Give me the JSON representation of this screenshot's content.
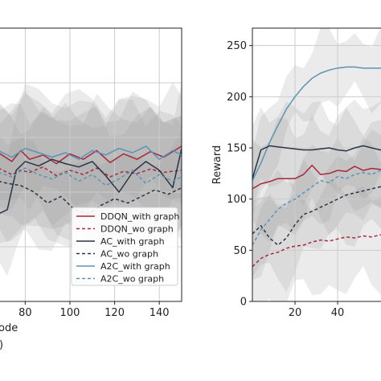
{
  "chart_data": [
    {
      "type": "line",
      "xlabel": "ode",
      "panel_label": ")",
      "xlim": [
        68,
        150
      ],
      "ylim": [
        20,
        270
      ],
      "x_ticks": [
        80,
        100,
        120,
        140
      ],
      "grid": true,
      "legend_position": "lower-right",
      "series": [
        {
          "name": "DDQN_with graph",
          "color": "#a8283c",
          "dash": "solid",
          "x": [
            68,
            74,
            78,
            82,
            88,
            94,
            100,
            106,
            112,
            118,
            124,
            130,
            136,
            142,
            150
          ],
          "y": [
            156,
            148,
            158,
            150,
            154,
            146,
            155,
            150,
            158,
            147,
            155,
            150,
            157,
            152,
            162
          ]
        },
        {
          "name": "DDQN_wo graph",
          "color": "#a8283c",
          "dash": "dashed",
          "x": [
            68,
            74,
            78,
            82,
            88,
            94,
            100,
            106,
            112,
            118,
            124,
            130,
            136,
            142,
            150
          ],
          "y": [
            142,
            136,
            140,
            138,
            143,
            135,
            140,
            136,
            142,
            134,
            139,
            137,
            141,
            138,
            140
          ]
        },
        {
          "name": "AC_with graph",
          "color": "#2b3444",
          "dash": "solid",
          "x": [
            68,
            72,
            76,
            80,
            86,
            92,
            98,
            104,
            110,
            116,
            122,
            128,
            134,
            140,
            146,
            150
          ],
          "y": [
            100,
            104,
            140,
            148,
            144,
            150,
            146,
            143,
            148,
            135,
            120,
            138,
            148,
            140,
            124,
            160
          ]
        },
        {
          "name": "AC_wo graph",
          "color": "#2b3444",
          "dash": "dashed",
          "x": [
            68,
            72,
            78,
            84,
            90,
            96,
            102,
            108,
            114,
            120,
            126,
            132,
            138,
            144,
            150
          ],
          "y": [
            130,
            128,
            126,
            120,
            110,
            116,
            104,
            100,
            108,
            114,
            110,
            116,
            122,
            118,
            124
          ]
        },
        {
          "name": "A2C_with graph",
          "color": "#5b93b6",
          "dash": "solid",
          "x": [
            68,
            74,
            80,
            86,
            92,
            98,
            104,
            110,
            116,
            122,
            128,
            134,
            140,
            146,
            150
          ],
          "y": [
            158,
            152,
            160,
            156,
            152,
            156,
            150,
            158,
            154,
            160,
            156,
            162,
            150,
            158,
            154
          ]
        },
        {
          "name": "A2C_wo graph",
          "color": "#5b93b6",
          "dash": "dashed",
          "x": [
            68,
            74,
            80,
            86,
            92,
            98,
            104,
            110,
            116,
            122,
            128,
            134,
            140,
            146,
            150
          ],
          "y": [
            138,
            134,
            142,
            136,
            132,
            138,
            130,
            136,
            126,
            132,
            140,
            128,
            136,
            130,
            134
          ]
        }
      ]
    },
    {
      "type": "line",
      "ylabel": "Reward",
      "xlim": [
        0,
        66
      ],
      "ylim": [
        0,
        267
      ],
      "x_ticks": [
        20,
        40
      ],
      "y_ticks": [
        0,
        50,
        100,
        150,
        200,
        250
      ],
      "grid": true,
      "series": [
        {
          "name": "A2C_with graph",
          "color": "#5b93b6",
          "dash": "solid",
          "x": [
            0,
            4,
            8,
            12,
            16,
            20,
            24,
            28,
            32,
            36,
            40,
            44,
            48,
            52,
            56,
            60,
            66
          ],
          "y": [
            118,
            135,
            155,
            172,
            188,
            200,
            210,
            218,
            223,
            226,
            228,
            229,
            229,
            228,
            228,
            228,
            227
          ]
        },
        {
          "name": "AC_with graph",
          "color": "#2b3444",
          "dash": "solid",
          "x": [
            0,
            4,
            8,
            12,
            16,
            20,
            24,
            28,
            32,
            36,
            40,
            44,
            48,
            52,
            56,
            60,
            66
          ],
          "y": [
            120,
            148,
            152,
            151,
            150,
            149,
            148,
            148,
            149,
            150,
            148,
            147,
            150,
            152,
            150,
            148,
            150
          ]
        },
        {
          "name": "DDQN_with graph",
          "color": "#a8283c",
          "dash": "solid",
          "x": [
            0,
            4,
            8,
            12,
            16,
            20,
            24,
            28,
            32,
            36,
            40,
            44,
            48,
            52,
            56,
            60,
            66
          ],
          "y": [
            110,
            115,
            117,
            120,
            120,
            120,
            124,
            133,
            124,
            125,
            128,
            127,
            132,
            128,
            130,
            129,
            126
          ]
        },
        {
          "name": "A2C_wo graph",
          "color": "#5b93b6",
          "dash": "dashed",
          "x": [
            0,
            4,
            8,
            12,
            16,
            20,
            24,
            28,
            32,
            36,
            40,
            44,
            48,
            52,
            56,
            60,
            66
          ],
          "y": [
            55,
            70,
            80,
            90,
            96,
            100,
            106,
            112,
            118,
            116,
            122,
            120,
            124,
            126,
            124,
            128,
            130
          ]
        },
        {
          "name": "AC_wo graph",
          "color": "#2b3444",
          "dash": "dashed",
          "x": [
            0,
            4,
            8,
            12,
            16,
            20,
            24,
            28,
            32,
            36,
            40,
            44,
            48,
            52,
            56,
            60,
            66
          ],
          "y": [
            66,
            74,
            62,
            55,
            62,
            75,
            85,
            88,
            92,
            96,
            100,
            104,
            106,
            108,
            110,
            112,
            114
          ]
        },
        {
          "name": "DDQN_wo graph",
          "color": "#a8283c",
          "dash": "dashed",
          "x": [
            0,
            4,
            8,
            12,
            16,
            20,
            24,
            28,
            32,
            36,
            40,
            44,
            48,
            52,
            56,
            60,
            66
          ],
          "y": [
            34,
            42,
            46,
            48,
            52,
            54,
            55,
            58,
            60,
            59,
            61,
            63,
            62,
            64,
            63,
            65,
            64
          ]
        }
      ]
    }
  ]
}
